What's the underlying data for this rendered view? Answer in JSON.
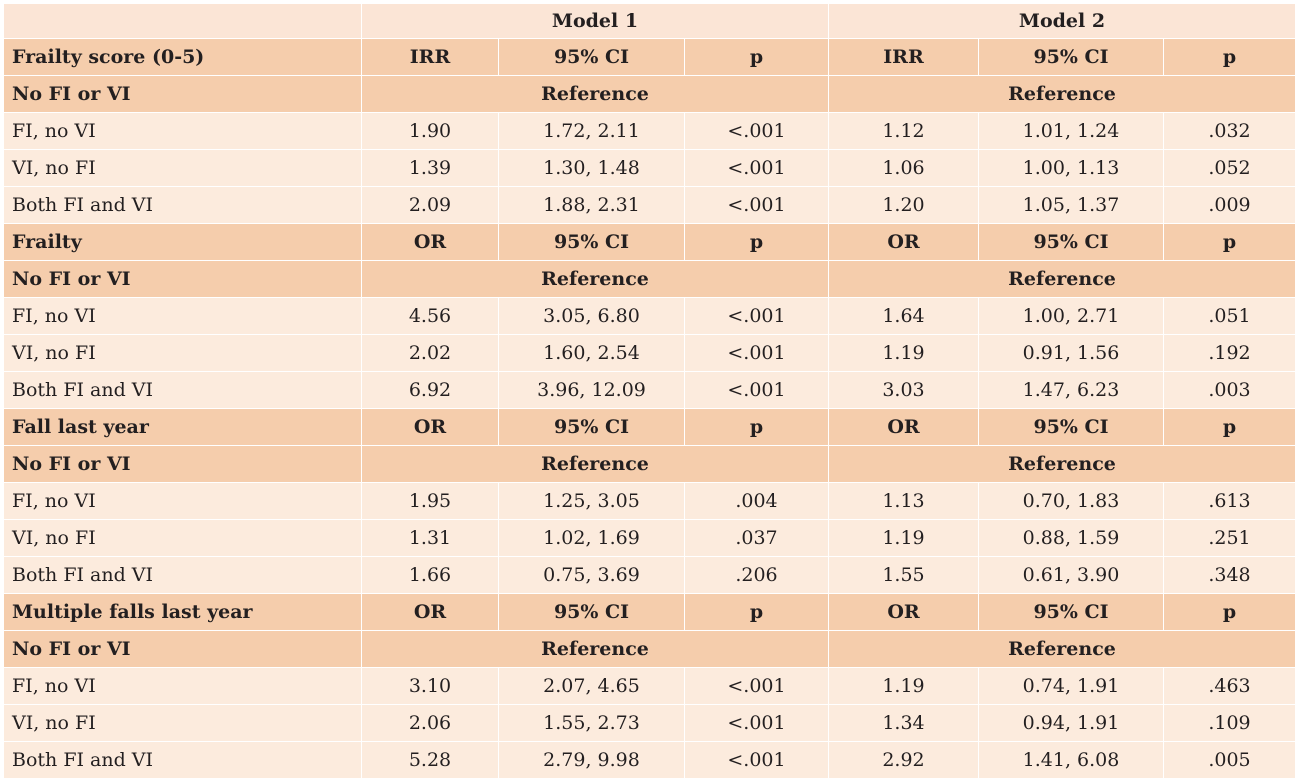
{
  "models": [
    "Model 1",
    "Model 2"
  ],
  "sections": [
    {
      "title": "Frailty score (0-5)",
      "headers": [
        "IRR",
        "95% CI",
        "p",
        "IRR",
        "95% CI",
        "p"
      ],
      "reference_label": "No FI or VI",
      "reference_text": "Reference",
      "rows": [
        {
          "label": "FI, no VI",
          "m1_est": "1.90",
          "m1_ci": "1.72, 2.11",
          "m1_p": "<.001",
          "m2_est": "1.12",
          "m2_ci": "1.01, 1.24",
          "m2_p": ".032"
        },
        {
          "label": "VI, no FI",
          "m1_est": "1.39",
          "m1_ci": "1.30, 1.48",
          "m1_p": "<.001",
          "m2_est": "1.06",
          "m2_ci": "1.00, 1.13",
          "m2_p": ".052"
        },
        {
          "label": "Both FI and VI",
          "m1_est": "2.09",
          "m1_ci": "1.88, 2.31",
          "m1_p": "<.001",
          "m2_est": "1.20",
          "m2_ci": "1.05, 1.37",
          "m2_p": ".009"
        }
      ]
    },
    {
      "title": "Frailty",
      "headers": [
        "OR",
        "95% CI",
        "p",
        "OR",
        "95% CI",
        "p"
      ],
      "reference_label": "No FI or VI",
      "reference_text": "Reference",
      "rows": [
        {
          "label": "FI, no VI",
          "m1_est": "4.56",
          "m1_ci": "3.05, 6.80",
          "m1_p": "<.001",
          "m2_est": "1.64",
          "m2_ci": "1.00, 2.71",
          "m2_p": ".051"
        },
        {
          "label": "VI, no FI",
          "m1_est": "2.02",
          "m1_ci": "1.60, 2.54",
          "m1_p": "<.001",
          "m2_est": "1.19",
          "m2_ci": "0.91, 1.56",
          "m2_p": ".192"
        },
        {
          "label": "Both FI and VI",
          "m1_est": "6.92",
          "m1_ci": "3.96, 12.09",
          "m1_p": "<.001",
          "m2_est": "3.03",
          "m2_ci": "1.47, 6.23",
          "m2_p": ".003"
        }
      ]
    },
    {
      "title": "Fall last year",
      "headers": [
        "OR",
        "95% CI",
        "p",
        "OR",
        "95% CI",
        "p"
      ],
      "reference_label": "No FI or VI",
      "reference_text": "Reference",
      "rows": [
        {
          "label": "FI, no VI",
          "m1_est": "1.95",
          "m1_ci": "1.25, 3.05",
          "m1_p": ".004",
          "m2_est": "1.13",
          "m2_ci": "0.70, 1.83",
          "m2_p": ".613"
        },
        {
          "label": "VI, no FI",
          "m1_est": "1.31",
          "m1_ci": "1.02, 1.69",
          "m1_p": ".037",
          "m2_est": "1.19",
          "m2_ci": "0.88, 1.59",
          "m2_p": ".251"
        },
        {
          "label": "Both FI and VI",
          "m1_est": "1.66",
          "m1_ci": "0.75, 3.69",
          "m1_p": ".206",
          "m2_est": "1.55",
          "m2_ci": "0.61, 3.90",
          "m2_p": ".348"
        }
      ]
    },
    {
      "title": "Multiple falls last year",
      "headers": [
        "OR",
        "95% CI",
        "p",
        "OR",
        "95% CI",
        "p"
      ],
      "reference_label": "No FI or VI",
      "reference_text": "Reference",
      "rows": [
        {
          "label": "FI, no VI",
          "m1_est": "3.10",
          "m1_ci": "2.07, 4.65",
          "m1_p": "<.001",
          "m2_est": "1.19",
          "m2_ci": "0.74, 1.91",
          "m2_p": ".463"
        },
        {
          "label": "VI, no FI",
          "m1_est": "2.06",
          "m1_ci": "1.55, 2.73",
          "m1_p": "<.001",
          "m2_est": "1.34",
          "m2_ci": "0.94, 1.91",
          "m2_p": ".109"
        },
        {
          "label": "Both FI and VI",
          "m1_est": "5.28",
          "m1_ci": "2.79, 9.98",
          "m1_p": "<.001",
          "m2_est": "2.92",
          "m2_ci": "1.41, 6.08",
          "m2_p": ".005"
        }
      ]
    }
  ]
}
